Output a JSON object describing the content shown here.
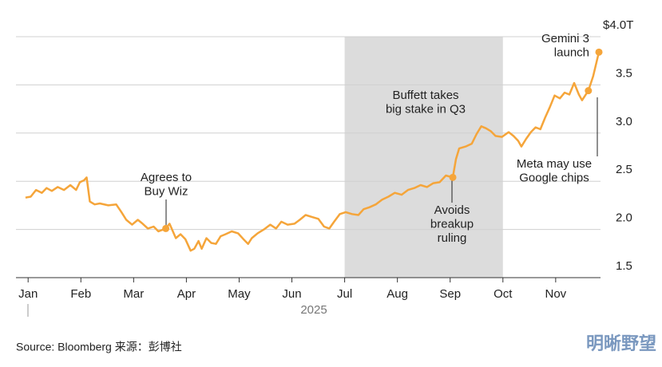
{
  "chart_data": {
    "type": "line",
    "x_label": "2025",
    "source": "Source: Bloomberg 来源：彭博社",
    "watermark": "明晰野望",
    "xlim": [
      -0.2,
      10.85
    ],
    "xticks": [
      {
        "value": 0,
        "label": "Jan"
      },
      {
        "value": 1,
        "label": "Feb"
      },
      {
        "value": 2,
        "label": "Mar"
      },
      {
        "value": 3,
        "label": "Apr"
      },
      {
        "value": 4,
        "label": "May"
      },
      {
        "value": 5,
        "label": "Jun"
      },
      {
        "value": 6,
        "label": "Jul"
      },
      {
        "value": 7,
        "label": "Aug"
      },
      {
        "value": 8,
        "label": "Sep"
      },
      {
        "value": 9,
        "label": "Oct"
      },
      {
        "value": 10,
        "label": "Nov"
      }
    ],
    "ylim": [
      1.5,
      4.0
    ],
    "yticks": [
      1.5,
      {
        "value": 2,
        "label": "2.0"
      },
      2.5,
      {
        "value": 3,
        "label": "3.0"
      },
      3.5,
      {
        "value": 4,
        "label": "$4.0T"
      }
    ],
    "grid": true,
    "shade": [
      6,
      9
    ],
    "shade_color": "#dcdcdc",
    "series": [
      {
        "color": "#f5a53a",
        "x": [
          -0.05,
          0.05,
          0.15,
          0.26,
          0.35,
          0.45,
          0.56,
          0.68,
          0.8,
          0.91,
          0.98,
          1.06,
          1.11,
          1.17,
          1.26,
          1.36,
          1.52,
          1.67,
          1.77,
          1.86,
          1.97,
          2.08,
          2.17,
          2.27,
          2.38,
          2.47,
          2.61,
          2.68,
          2.8,
          2.89,
          2.98,
          3.08,
          3.15,
          3.23,
          3.29,
          3.38,
          3.47,
          3.56,
          3.65,
          3.74,
          3.86,
          3.98,
          4.08,
          4.17,
          4.24,
          4.35,
          4.47,
          4.59,
          4.7,
          4.8,
          4.92,
          5.05,
          5.15,
          5.26,
          5.38,
          5.5,
          5.61,
          5.71,
          5.8,
          5.91,
          6.02,
          6.14,
          6.26,
          6.36,
          6.47,
          6.59,
          6.71,
          6.83,
          6.95,
          7.08,
          7.2,
          7.32,
          7.44,
          7.56,
          7.68,
          7.8,
          7.92,
          8.05,
          8.11,
          8.17,
          8.29,
          8.41,
          8.5,
          8.59,
          8.68,
          8.77,
          8.86,
          8.98,
          9.11,
          9.2,
          9.29,
          9.35,
          9.44,
          9.53,
          9.62,
          9.71,
          9.8,
          9.89,
          9.98,
          10.08,
          10.17,
          10.26,
          10.35,
          10.44,
          10.5,
          10.62,
          10.71,
          10.82
        ],
        "values": [
          2.33,
          2.34,
          2.41,
          2.38,
          2.43,
          2.4,
          2.44,
          2.41,
          2.46,
          2.41,
          2.49,
          2.51,
          2.54,
          2.29,
          2.26,
          2.27,
          2.25,
          2.26,
          2.18,
          2.1,
          2.05,
          2.1,
          2.06,
          2.01,
          2.03,
          1.98,
          2.01,
          2.06,
          1.91,
          1.95,
          1.9,
          1.78,
          1.8,
          1.88,
          1.8,
          1.91,
          1.86,
          1.85,
          1.93,
          1.95,
          1.98,
          1.96,
          1.9,
          1.85,
          1.91,
          1.96,
          2.0,
          2.05,
          2.01,
          2.08,
          2.05,
          2.06,
          2.1,
          2.15,
          2.13,
          2.11,
          2.03,
          2.01,
          2.08,
          2.16,
          2.18,
          2.16,
          2.15,
          2.21,
          2.23,
          2.26,
          2.31,
          2.34,
          2.38,
          2.36,
          2.41,
          2.43,
          2.46,
          2.44,
          2.48,
          2.49,
          2.56,
          2.54,
          2.73,
          2.84,
          2.86,
          2.89,
          2.99,
          3.07,
          3.05,
          3.02,
          2.97,
          2.96,
          3.01,
          2.97,
          2.92,
          2.86,
          2.94,
          3.01,
          3.06,
          3.04,
          3.16,
          3.27,
          3.39,
          3.36,
          3.42,
          3.4,
          3.52,
          3.4,
          3.34,
          3.44,
          3.59,
          3.84
        ]
      }
    ],
    "annotations": [
      {
        "text": [
          "Agrees to",
          "Buy Wiz"
        ],
        "x": 2.61,
        "y": 2.01
      },
      {
        "text": [
          "Buffett takes",
          "big stake in Q3"
        ]
      },
      {
        "text": [
          "Avoids",
          "breakup",
          "ruling"
        ],
        "x": 8.05,
        "y": 2.54
      },
      {
        "text": [
          "Gemini 3",
          "launch"
        ],
        "x": 10.82,
        "y": 3.84
      },
      {
        "text": [
          "Meta may use",
          "Google chips"
        ],
        "x": 10.62,
        "y": 3.44
      }
    ]
  }
}
